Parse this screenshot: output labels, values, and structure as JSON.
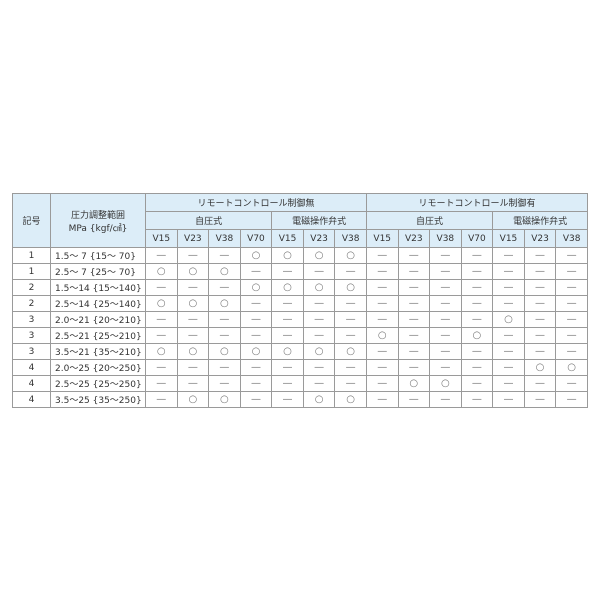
{
  "headers": {
    "code": "記号",
    "range_line1": "圧力調整範囲",
    "range_line2": "MPa {kgf/㎠}",
    "group_without": "リモートコントロール制御無",
    "group_with": "リモートコントロール制御有",
    "self_pressure": "自圧式",
    "solenoid": "電磁操作弁式",
    "cols": [
      "V15",
      "V23",
      "V38",
      "V70",
      "V15",
      "V23",
      "V38",
      "V15",
      "V23",
      "V38",
      "V70",
      "V15",
      "V23",
      "V38"
    ]
  },
  "rows": [
    {
      "code": "1",
      "range": "1.5～ 7 {15～ 70}",
      "cells": [
        "—",
        "—",
        "—",
        "○",
        "○",
        "○",
        "○",
        "—",
        "—",
        "—",
        "—",
        "—",
        "—",
        "—"
      ]
    },
    {
      "code": "1",
      "range": "2.5～ 7 {25～ 70}",
      "cells": [
        "○",
        "○",
        "○",
        "—",
        "—",
        "—",
        "—",
        "—",
        "—",
        "—",
        "—",
        "—",
        "—",
        "—"
      ]
    },
    {
      "code": "2",
      "range": "1.5～14 {15～140}",
      "cells": [
        "—",
        "—",
        "—",
        "○",
        "○",
        "○",
        "○",
        "—",
        "—",
        "—",
        "—",
        "—",
        "—",
        "—"
      ]
    },
    {
      "code": "2",
      "range": "2.5～14 {25～140}",
      "cells": [
        "○",
        "○",
        "○",
        "—",
        "—",
        "—",
        "—",
        "—",
        "—",
        "—",
        "—",
        "—",
        "—",
        "—"
      ]
    },
    {
      "code": "3",
      "range": "2.0～21 {20～210}",
      "cells": [
        "—",
        "—",
        "—",
        "—",
        "—",
        "—",
        "—",
        "—",
        "—",
        "—",
        "—",
        "○",
        "—",
        "—"
      ]
    },
    {
      "code": "3",
      "range": "2.5～21 {25～210}",
      "cells": [
        "—",
        "—",
        "—",
        "—",
        "—",
        "—",
        "—",
        "○",
        "—",
        "—",
        "○",
        "—",
        "—",
        "—"
      ]
    },
    {
      "code": "3",
      "range": "3.5～21 {35～210}",
      "cells": [
        "○",
        "○",
        "○",
        "○",
        "○",
        "○",
        "○",
        "—",
        "—",
        "—",
        "—",
        "—",
        "—",
        "—"
      ]
    },
    {
      "code": "4",
      "range": "2.0～25 {20～250}",
      "cells": [
        "—",
        "—",
        "—",
        "—",
        "—",
        "—",
        "—",
        "—",
        "—",
        "—",
        "—",
        "—",
        "○",
        "○"
      ]
    },
    {
      "code": "4",
      "range": "2.5～25 {25～250}",
      "cells": [
        "—",
        "—",
        "—",
        "—",
        "—",
        "—",
        "—",
        "—",
        "○",
        "○",
        "—",
        "—",
        "—",
        "—"
      ]
    },
    {
      "code": "4",
      "range": "3.5～25 {35～250}",
      "cells": [
        "—",
        "○",
        "○",
        "—",
        "—",
        "○",
        "○",
        "—",
        "—",
        "—",
        "—",
        "—",
        "—",
        "—"
      ]
    }
  ]
}
